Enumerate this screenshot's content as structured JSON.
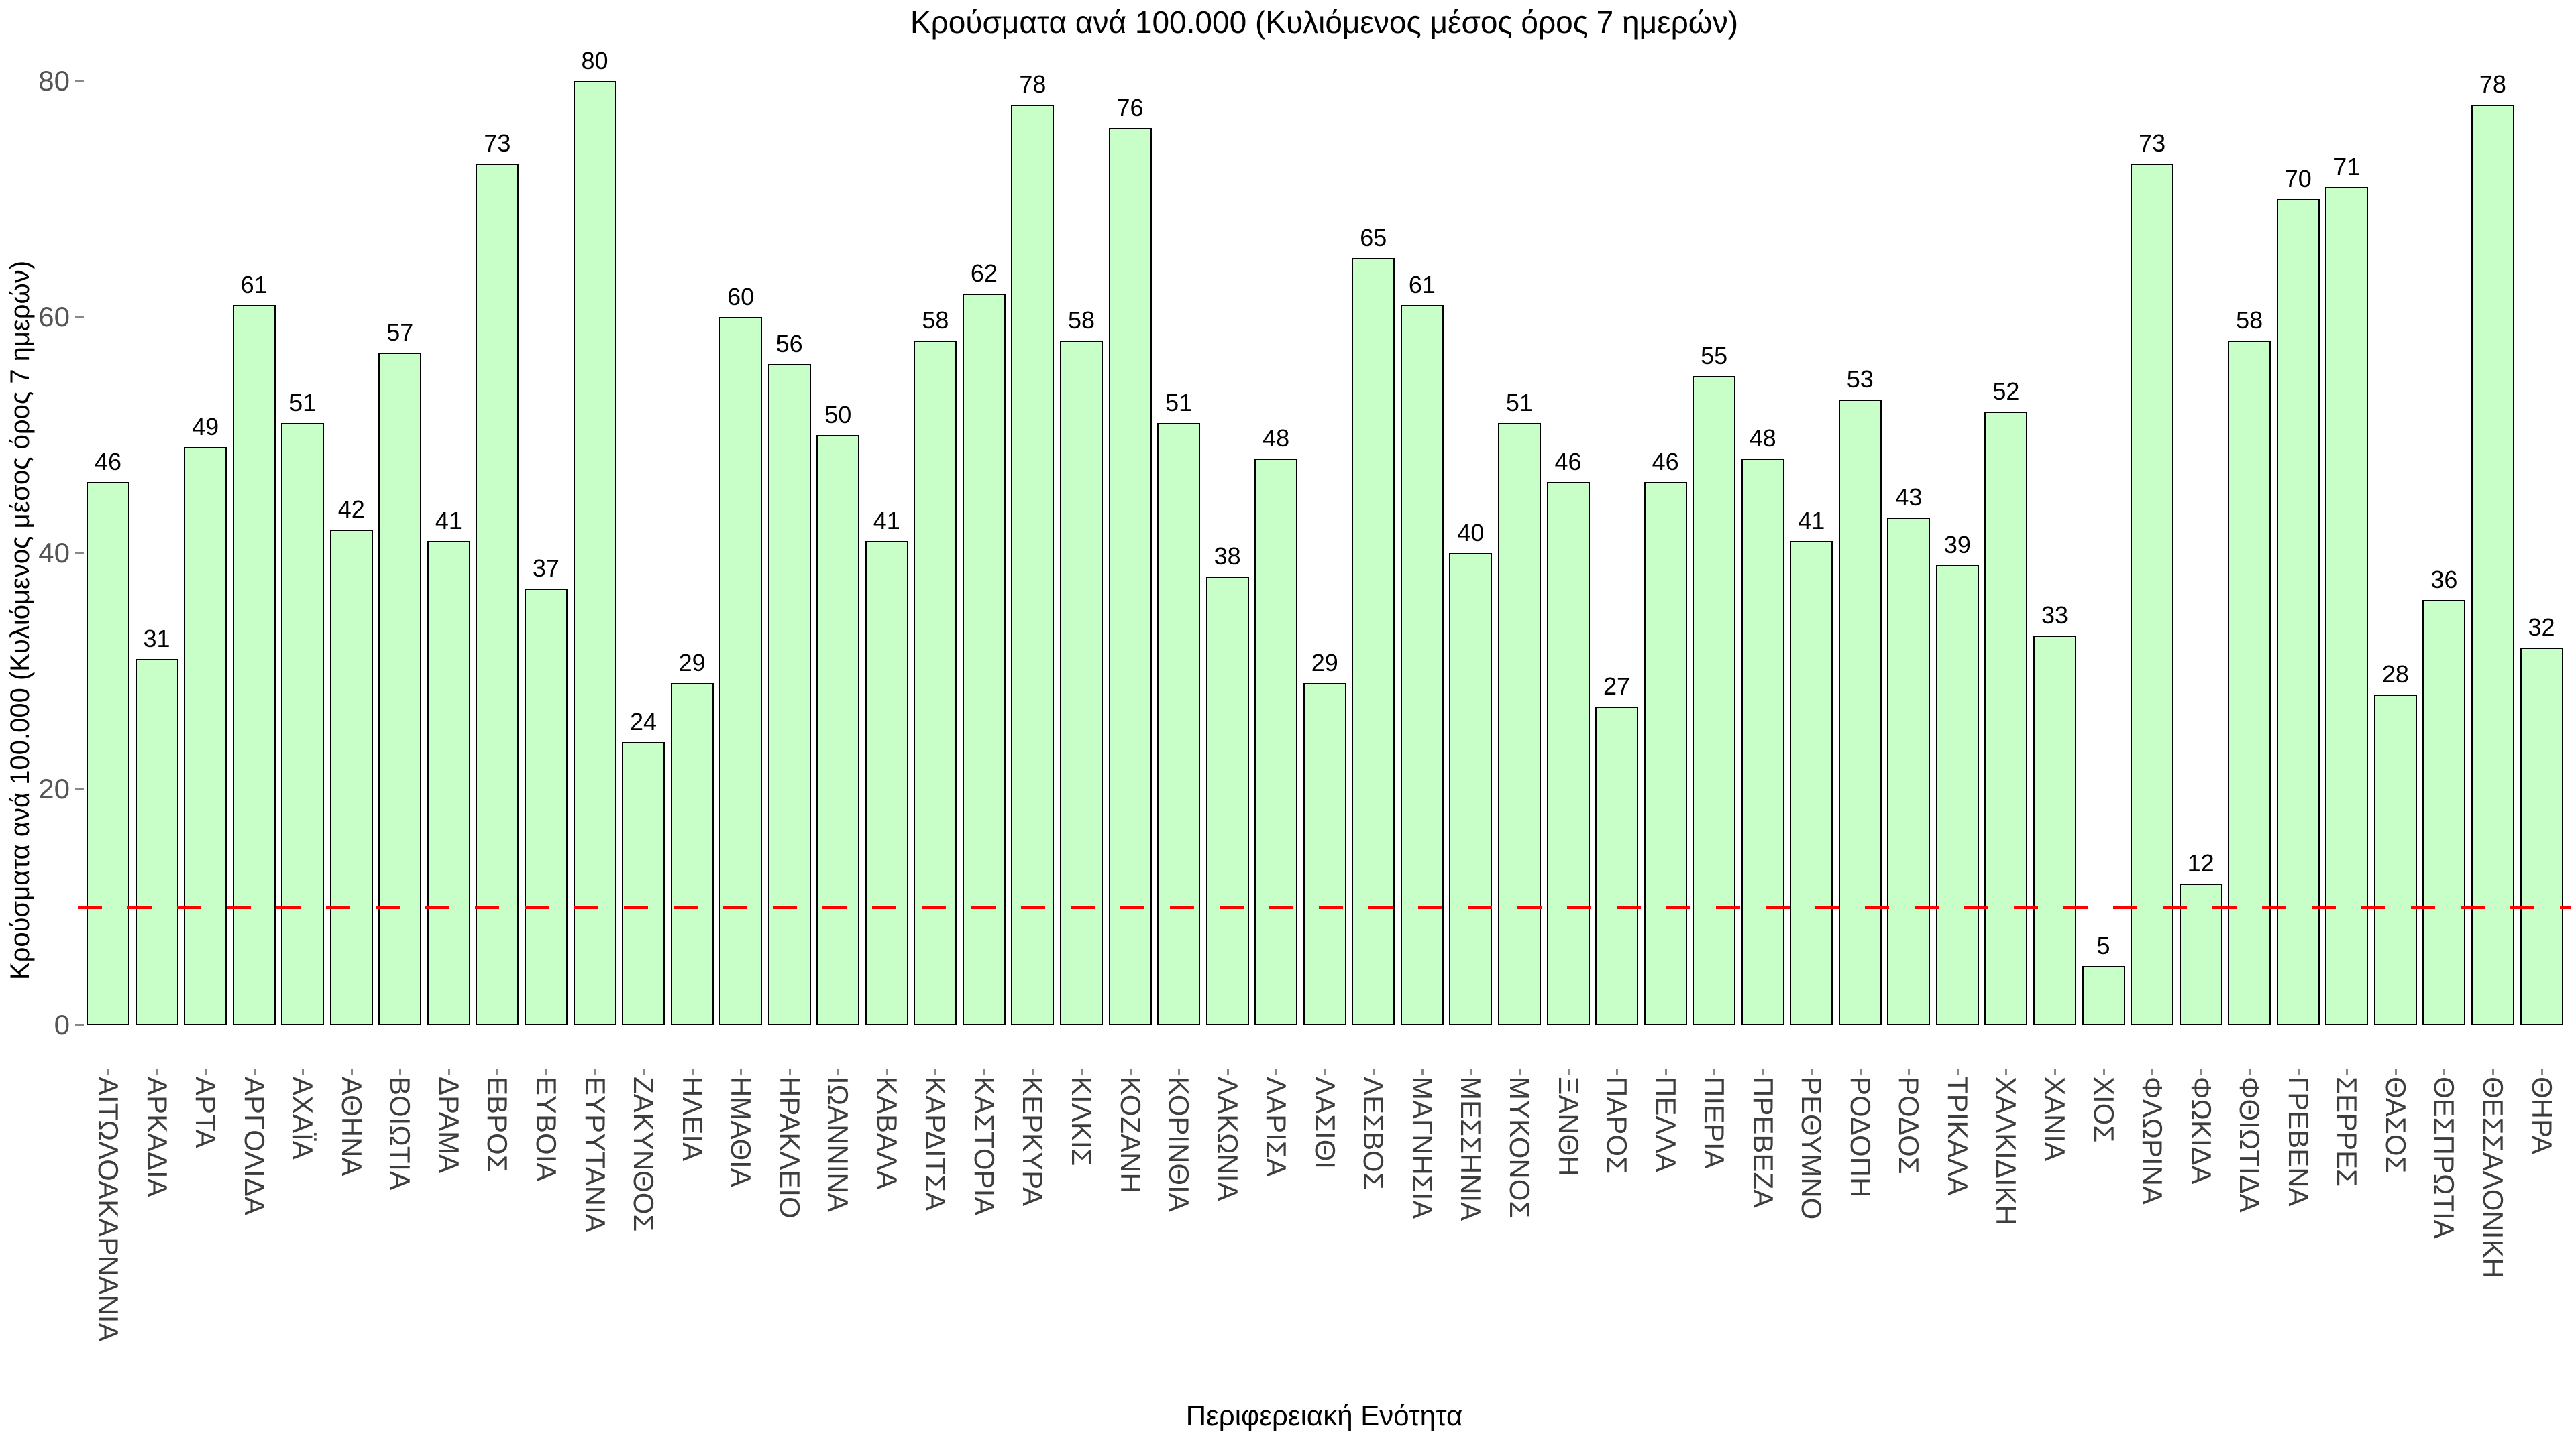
{
  "chart_data": {
    "type": "bar",
    "title": "Κρούσματα ανά 100.000 (Κυλιόμενος μέσος όρος 7 ημερών)",
    "xlabel": "Περιφερειακή Ενότητα",
    "ylabel": "Κρούσματα ανά 100.000 (Κυλιόμενος μέσος όρος 7 ημερών)",
    "categories": [
      "ΑΙΤΩΛΟΑΚΑΡΝΑΝΙΑ",
      "ΑΡΚΑΔΙΑ",
      "ΑΡΤΑ",
      "ΑΡΓΟΛΙΔΑ",
      "ΑΧΑΪΑ",
      "ΑΘΗΝΑ",
      "ΒΟΙΩΤΙΑ",
      "ΔΡΑΜΑ",
      "ΕΒΡΟΣ",
      "ΕΥΒΟΙΑ",
      "ΕΥΡΥΤΑΝΙΑ",
      "ΖΑΚΥΝΘΟΣ",
      "ΗΛΕΙΑ",
      "ΗΜΑΘΙΑ",
      "ΗΡΑΚΛΕΙΟ",
      "ΙΩΑΝΝΙΝΑ",
      "ΚΑΒΑΛΑ",
      "ΚΑΡΔΙΤΣΑ",
      "ΚΑΣΤΟΡΙΑ",
      "ΚΕΡΚΥΡΑ",
      "ΚΙΛΚΙΣ",
      "ΚΟΖΑΝΗ",
      "ΚΟΡΙΝΘΙΑ",
      "ΛΑΚΩΝΙΑ",
      "ΛΑΡΙΣΑ",
      "ΛΑΣΙΘΙ",
      "ΛΕΣΒΟΣ",
      "ΜΑΓΝΗΣΙΑ",
      "ΜΕΣΣΗΝΙΑ",
      "ΜΥΚΟΝΟΣ",
      "ΞΑΝΘΗ",
      "ΠΑΡΟΣ",
      "ΠΕΛΛΑ",
      "ΠΙΕΡΙΑ",
      "ΠΡΕΒΕΖΑ",
      "ΡΕΘΥΜΝΟ",
      "ΡΟΔΟΠΗ",
      "ΡΟΔΟΣ",
      "ΤΡΙΚΑΛΑ",
      "ΧΑΛΚΙΔΙΚΗ",
      "ΧΑΝΙΑ",
      "ΧΙΟΣ",
      "ΦΛΩΡΙΝΑ",
      "ΦΩΚΙΔΑ",
      "ΦΘΙΩΤΙΔΑ",
      "ΓΡΕΒΕΝΑ",
      "ΣΕΡΡΕΣ",
      "ΘΑΣΟΣ",
      "ΘΕΣΠΡΩΤΙΑ",
      "ΘΕΣΣΑΛΟΝΙΚΗ",
      "ΘΗΡΑ"
    ],
    "values": [
      46,
      31,
      49,
      61,
      51,
      42,
      57,
      41,
      73,
      37,
      80,
      24,
      29,
      60,
      56,
      50,
      41,
      58,
      62,
      78,
      58,
      76,
      51,
      38,
      48,
      29,
      65,
      61,
      40,
      51,
      46,
      27,
      46,
      55,
      48,
      41,
      53,
      43,
      39,
      52,
      33,
      5,
      73,
      12,
      58,
      70,
      71,
      28,
      36,
      78,
      32
    ],
    "yticks": [
      0,
      20,
      40,
      60,
      80
    ],
    "ylim": [
      0,
      84
    ],
    "threshold_line": {
      "value": 10,
      "color": "#ff0000",
      "style": "dashed"
    },
    "bar_fill": "#c8ffc8",
    "bar_border": "#000000",
    "grid": false,
    "legend": null,
    "bar_label_color": "#000000",
    "tick_label_color": "#555555",
    "x_tick_label_color": "#3d3d3d"
  }
}
